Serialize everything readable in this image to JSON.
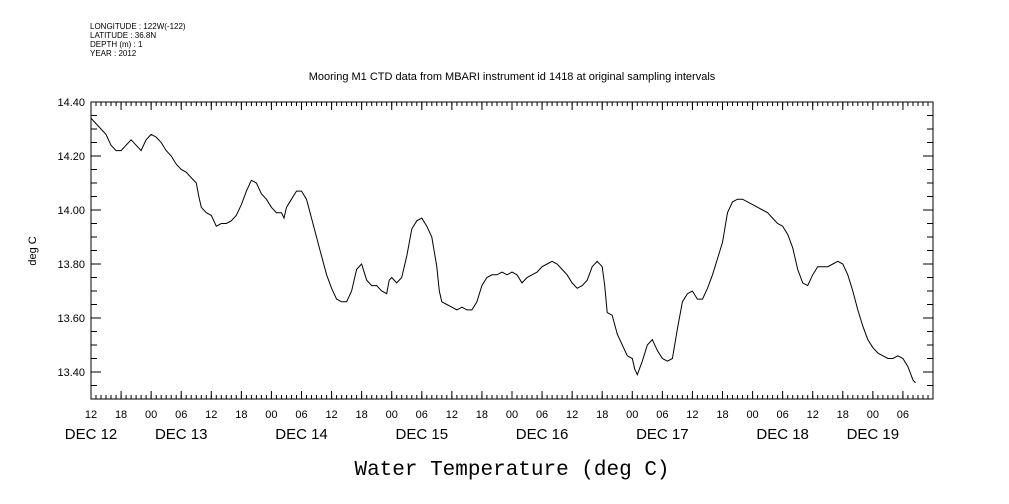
{
  "metadata": {
    "lines": [
      "LONGITUDE : 122W(-122)",
      "LATITUDE : 36.8N",
      "DEPTH (m) : 1",
      "YEAR : 2012"
    ]
  },
  "chart_data": {
    "type": "line",
    "title": "Mooring M1 CTD data from MBARI instrument id 1418 at original sampling intervals",
    "xlabel": "Water Temperature (deg C)",
    "ylabel": "deg C",
    "ylim": [
      13.3,
      14.4
    ],
    "y_ticks": [
      "13.40",
      "13.60",
      "13.80",
      "14.00",
      "14.20",
      "14.40"
    ],
    "x_unit": "hours since Dec 12 00:00, 2012",
    "xlim": [
      12,
      180
    ],
    "x_hour_ticks": [
      {
        "h": 12,
        "label": "12"
      },
      {
        "h": 18,
        "label": "18"
      },
      {
        "h": 24,
        "label": "00"
      },
      {
        "h": 30,
        "label": "06"
      },
      {
        "h": 36,
        "label": "12"
      },
      {
        "h": 42,
        "label": "18"
      },
      {
        "h": 48,
        "label": "00"
      },
      {
        "h": 54,
        "label": "06"
      },
      {
        "h": 60,
        "label": "12"
      },
      {
        "h": 66,
        "label": "18"
      },
      {
        "h": 72,
        "label": "00"
      },
      {
        "h": 78,
        "label": "06"
      },
      {
        "h": 84,
        "label": "12"
      },
      {
        "h": 90,
        "label": "18"
      },
      {
        "h": 96,
        "label": "00"
      },
      {
        "h": 102,
        "label": "06"
      },
      {
        "h": 108,
        "label": "12"
      },
      {
        "h": 114,
        "label": "18"
      },
      {
        "h": 120,
        "label": "00"
      },
      {
        "h": 126,
        "label": "06"
      },
      {
        "h": 132,
        "label": "12"
      },
      {
        "h": 138,
        "label": "18"
      },
      {
        "h": 144,
        "label": "00"
      },
      {
        "h": 150,
        "label": "06"
      },
      {
        "h": 156,
        "label": "12"
      },
      {
        "h": 162,
        "label": "18"
      },
      {
        "h": 168,
        "label": "00"
      },
      {
        "h": 174,
        "label": "06"
      }
    ],
    "x_day_labels": [
      {
        "h": 12,
        "label": "DEC 12"
      },
      {
        "h": 30,
        "label": "DEC 13"
      },
      {
        "h": 54,
        "label": "DEC 14"
      },
      {
        "h": 78,
        "label": "DEC 15"
      },
      {
        "h": 102,
        "label": "DEC 16"
      },
      {
        "h": 126,
        "label": "DEC 17"
      },
      {
        "h": 150,
        "label": "DEC 18"
      },
      {
        "h": 168,
        "label": "DEC 19"
      }
    ],
    "series": [
      {
        "color": "#000000",
        "points": [
          [
            12.0,
            14.34
          ],
          [
            13.0,
            14.32
          ],
          [
            14.0,
            14.3
          ],
          [
            15.0,
            14.28
          ],
          [
            16.0,
            14.24
          ],
          [
            17.0,
            14.22
          ],
          [
            18.0,
            14.22
          ],
          [
            19.0,
            14.24
          ],
          [
            20.0,
            14.26
          ],
          [
            21.0,
            14.24
          ],
          [
            22.0,
            14.22
          ],
          [
            23.0,
            14.26
          ],
          [
            24.0,
            14.28
          ],
          [
            25.0,
            14.27
          ],
          [
            26.0,
            14.25
          ],
          [
            27.0,
            14.22
          ],
          [
            28.0,
            14.2
          ],
          [
            29.0,
            14.17
          ],
          [
            30.0,
            14.15
          ],
          [
            31.0,
            14.14
          ],
          [
            32.0,
            14.12
          ],
          [
            33.0,
            14.1
          ],
          [
            33.5,
            14.05
          ],
          [
            34.0,
            14.01
          ],
          [
            35.0,
            13.99
          ],
          [
            36.0,
            13.98
          ],
          [
            37.0,
            13.94
          ],
          [
            38.0,
            13.95
          ],
          [
            39.0,
            13.95
          ],
          [
            40.0,
            13.96
          ],
          [
            41.0,
            13.98
          ],
          [
            42.0,
            14.02
          ],
          [
            43.0,
            14.07
          ],
          [
            44.0,
            14.11
          ],
          [
            45.0,
            14.1
          ],
          [
            46.0,
            14.06
          ],
          [
            47.0,
            14.04
          ],
          [
            48.0,
            14.01
          ],
          [
            49.0,
            13.99
          ],
          [
            50.0,
            13.99
          ],
          [
            50.5,
            13.97
          ],
          [
            51.0,
            14.01
          ],
          [
            52.0,
            14.04
          ],
          [
            53.0,
            14.07
          ],
          [
            54.0,
            14.07
          ],
          [
            55.0,
            14.04
          ],
          [
            56.0,
            13.97
          ],
          [
            57.0,
            13.9
          ],
          [
            58.0,
            13.83
          ],
          [
            59.0,
            13.76
          ],
          [
            60.0,
            13.71
          ],
          [
            61.0,
            13.67
          ],
          [
            62.0,
            13.66
          ],
          [
            63.0,
            13.66
          ],
          [
            64.0,
            13.7
          ],
          [
            65.0,
            13.78
          ],
          [
            66.0,
            13.8
          ],
          [
            67.0,
            13.74
          ],
          [
            68.0,
            13.72
          ],
          [
            69.0,
            13.72
          ],
          [
            70.0,
            13.7
          ],
          [
            71.0,
            13.69
          ],
          [
            71.5,
            13.74
          ],
          [
            72.0,
            13.75
          ],
          [
            73.0,
            13.73
          ],
          [
            74.0,
            13.75
          ],
          [
            75.0,
            13.83
          ],
          [
            76.0,
            13.93
          ],
          [
            77.0,
            13.96
          ],
          [
            78.0,
            13.97
          ],
          [
            79.0,
            13.94
          ],
          [
            80.0,
            13.9
          ],
          [
            81.0,
            13.79
          ],
          [
            81.5,
            13.7
          ],
          [
            82.0,
            13.66
          ],
          [
            83.0,
            13.65
          ],
          [
            84.0,
            13.64
          ],
          [
            85.0,
            13.63
          ],
          [
            86.0,
            13.64
          ],
          [
            87.0,
            13.63
          ],
          [
            88.0,
            13.63
          ],
          [
            89.0,
            13.66
          ],
          [
            90.0,
            13.72
          ],
          [
            91.0,
            13.75
          ],
          [
            92.0,
            13.76
          ],
          [
            93.0,
            13.76
          ],
          [
            94.0,
            13.77
          ],
          [
            95.0,
            13.76
          ],
          [
            96.0,
            13.77
          ],
          [
            97.0,
            13.76
          ],
          [
            98.0,
            13.73
          ],
          [
            99.0,
            13.75
          ],
          [
            100.0,
            13.76
          ],
          [
            101.0,
            13.77
          ],
          [
            102.0,
            13.79
          ],
          [
            103.0,
            13.8
          ],
          [
            104.0,
            13.81
          ],
          [
            105.0,
            13.8
          ],
          [
            106.0,
            13.78
          ],
          [
            107.0,
            13.76
          ],
          [
            108.0,
            13.73
          ],
          [
            109.0,
            13.71
          ],
          [
            110.0,
            13.72
          ],
          [
            111.0,
            13.74
          ],
          [
            112.0,
            13.79
          ],
          [
            113.0,
            13.81
          ],
          [
            114.0,
            13.79
          ],
          [
            114.5,
            13.72
          ],
          [
            115.0,
            13.62
          ],
          [
            116.0,
            13.61
          ],
          [
            117.0,
            13.54
          ],
          [
            118.0,
            13.5
          ],
          [
            119.0,
            13.46
          ],
          [
            120.0,
            13.45
          ],
          [
            120.5,
            13.41
          ],
          [
            121.0,
            13.39
          ],
          [
            122.0,
            13.44
          ],
          [
            123.0,
            13.5
          ],
          [
            124.0,
            13.52
          ],
          [
            125.0,
            13.48
          ],
          [
            126.0,
            13.45
          ],
          [
            127.0,
            13.44
          ],
          [
            128.0,
            13.45
          ],
          [
            129.0,
            13.56
          ],
          [
            130.0,
            13.66
          ],
          [
            131.0,
            13.69
          ],
          [
            132.0,
            13.7
          ],
          [
            133.0,
            13.67
          ],
          [
            134.0,
            13.67
          ],
          [
            135.0,
            13.71
          ],
          [
            136.0,
            13.76
          ],
          [
            137.0,
            13.82
          ],
          [
            138.0,
            13.88
          ],
          [
            139.0,
            13.99
          ],
          [
            140.0,
            14.03
          ],
          [
            141.0,
            14.04
          ],
          [
            142.0,
            14.04
          ],
          [
            143.0,
            14.03
          ],
          [
            144.0,
            14.02
          ],
          [
            145.0,
            14.01
          ],
          [
            146.0,
            14.0
          ],
          [
            147.0,
            13.99
          ],
          [
            148.0,
            13.97
          ],
          [
            149.0,
            13.95
          ],
          [
            150.0,
            13.94
          ],
          [
            151.0,
            13.91
          ],
          [
            152.0,
            13.86
          ],
          [
            153.0,
            13.78
          ],
          [
            154.0,
            13.73
          ],
          [
            155.0,
            13.72
          ],
          [
            156.0,
            13.76
          ],
          [
            157.0,
            13.79
          ],
          [
            158.0,
            13.79
          ],
          [
            159.0,
            13.79
          ],
          [
            160.0,
            13.8
          ],
          [
            161.0,
            13.81
          ],
          [
            162.0,
            13.8
          ],
          [
            163.0,
            13.76
          ],
          [
            164.0,
            13.7
          ],
          [
            165.0,
            13.63
          ],
          [
            166.0,
            13.57
          ],
          [
            167.0,
            13.52
          ],
          [
            168.0,
            13.49
          ],
          [
            169.0,
            13.47
          ],
          [
            170.0,
            13.46
          ],
          [
            171.0,
            13.45
          ],
          [
            172.0,
            13.45
          ],
          [
            173.0,
            13.46
          ],
          [
            174.0,
            13.45
          ],
          [
            175.0,
            13.42
          ],
          [
            176.0,
            13.37
          ],
          [
            176.5,
            13.36
          ]
        ]
      }
    ]
  }
}
